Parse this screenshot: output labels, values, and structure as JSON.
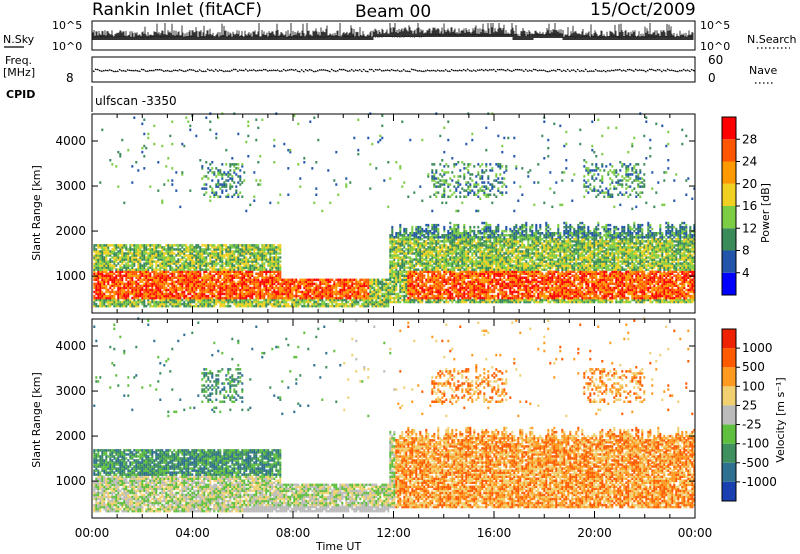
{
  "header": {
    "station": "Rankin Inlet (fitACF)",
    "beam": "Beam 00",
    "date": "15/Oct/2009"
  },
  "top_panels": {
    "nsky_label": "N.Sky",
    "nsky_ticks": [
      "10^5",
      "10^0"
    ],
    "nsearch_label": "N.Search",
    "nsearch_ticks": [
      "10^5",
      "10^0"
    ],
    "freq_label_top": "Freq.",
    "freq_label_unit": "[MHz]",
    "freq_ticks": [
      "8"
    ],
    "nave_label": "Nave",
    "nave_ticks": [
      "60",
      "0"
    ],
    "cpid_label": "CPID",
    "cpid_value": "ulfscan -3350"
  },
  "chart_data": [
    {
      "type": "heatmap",
      "title": "",
      "ylabel": "Slant Range [km]",
      "ylim": [
        180,
        4600
      ],
      "yticks": [
        "1000",
        "2000",
        "3000",
        "4000"
      ],
      "xlim": [
        0,
        24
      ],
      "xticks": [
        "00:00",
        "04:00",
        "08:00",
        "12:00",
        "16:00",
        "20:00",
        "00:00"
      ],
      "colorbar_label": "Power [dB]",
      "colorbar_ticks": [
        "4",
        "8",
        "12",
        "16",
        "20",
        "24",
        "28"
      ],
      "colors": [
        "#0000ff",
        "#2255aa",
        "#3a8a5a",
        "#7ccc44",
        "#f0d020",
        "#ff9900",
        "#ff5500",
        "#ff0000"
      ]
    },
    {
      "type": "heatmap",
      "title": "",
      "ylabel": "Slant Range [km]",
      "xlabel": "Time UT",
      "ylim": [
        180,
        4600
      ],
      "yticks": [
        "1000",
        "2000",
        "3000",
        "4000"
      ],
      "xlim": [
        0,
        24
      ],
      "xticks": [
        "00:00",
        "04:00",
        "08:00",
        "12:00",
        "16:00",
        "20:00",
        "00:00"
      ],
      "colorbar_label": "Velocity [m s⁻¹]",
      "colorbar_ticks": [
        "1000",
        "500",
        "100",
        "25",
        "-25",
        "-100",
        "-500",
        "-1000"
      ],
      "colors": [
        "#1a3fb0",
        "#2f6f8f",
        "#3f8f5f",
        "#5fbf3f",
        "#bbbbbb",
        "#f0d070",
        "#ff9a20",
        "#ff5a00",
        "#ee2200"
      ]
    }
  ]
}
